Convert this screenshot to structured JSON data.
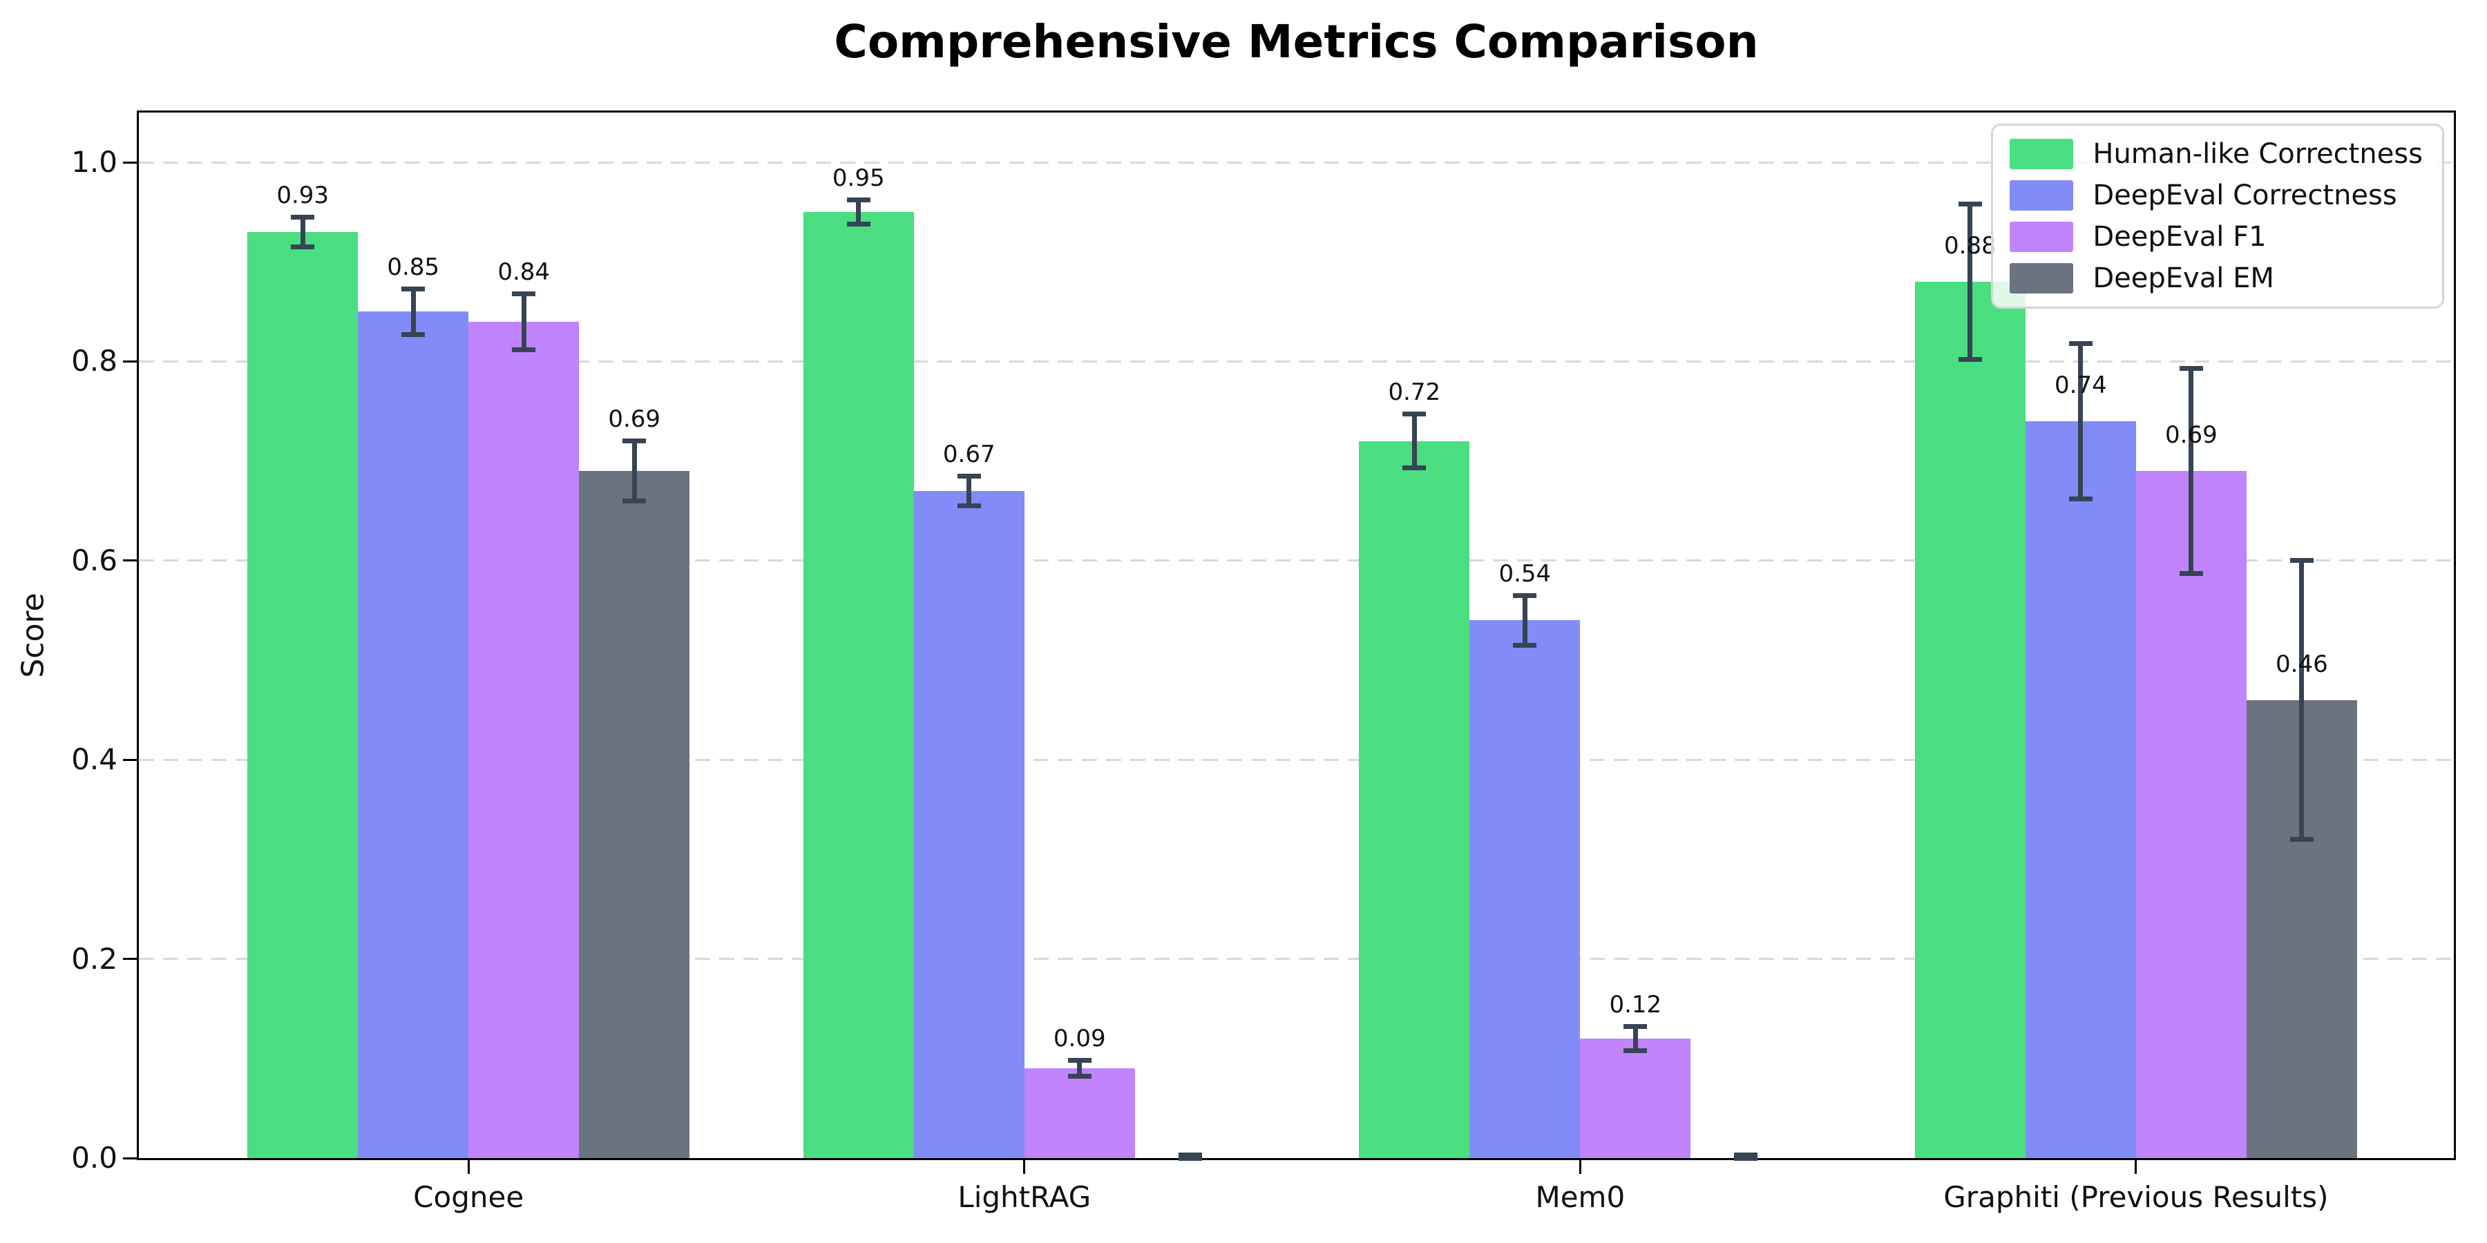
{
  "chart_data": {
    "type": "bar",
    "title": "Comprehensive Metrics Comparison",
    "ylabel": "Score",
    "xlabel": "",
    "ylim": [
      0,
      1.05
    ],
    "yticks": [
      0.0,
      0.2,
      0.4,
      0.6,
      0.8,
      1.0
    ],
    "grid": "horizontal-dashed",
    "legend_position": "upper-right",
    "categories": [
      "Cognee",
      "LightRAG",
      "Mem0",
      "Graphiti (Previous Results)"
    ],
    "series": [
      {
        "name": "Human-like Correctness",
        "color": "#4ade80",
        "values": [
          0.93,
          0.95,
          0.72,
          0.88
        ],
        "errors": [
          0.015,
          0.012,
          0.027,
          0.078
        ],
        "labels": [
          "0.93",
          "0.95",
          "0.72",
          "0.88"
        ]
      },
      {
        "name": "DeepEval Correctness",
        "color": "#818cf8",
        "values": [
          0.85,
          0.67,
          0.54,
          0.74
        ],
        "errors": [
          0.023,
          0.015,
          0.025,
          0.078
        ],
        "labels": [
          "0.85",
          "0.67",
          "0.54",
          "0.74"
        ]
      },
      {
        "name": "DeepEval F1",
        "color": "#c084fc",
        "values": [
          0.84,
          0.09,
          0.12,
          0.69
        ],
        "errors": [
          0.028,
          0.008,
          0.012,
          0.103
        ],
        "labels": [
          "0.84",
          "0.09",
          "0.12",
          "0.69"
        ]
      },
      {
        "name": "DeepEval EM",
        "color": "#6b7280",
        "values": [
          0.69,
          0.0,
          0.0,
          0.46
        ],
        "errors": [
          0.03,
          0.003,
          0.003,
          0.14
        ],
        "labels": [
          "0.69",
          "",
          "",
          "0.46"
        ]
      }
    ],
    "style": {
      "error_color": "#364454",
      "grid_color": "#d9d9d9",
      "axis_color": "#000000",
      "text_color": "#111111",
      "legend_border": "#d6d6d6",
      "background": "#ffffff"
    }
  }
}
